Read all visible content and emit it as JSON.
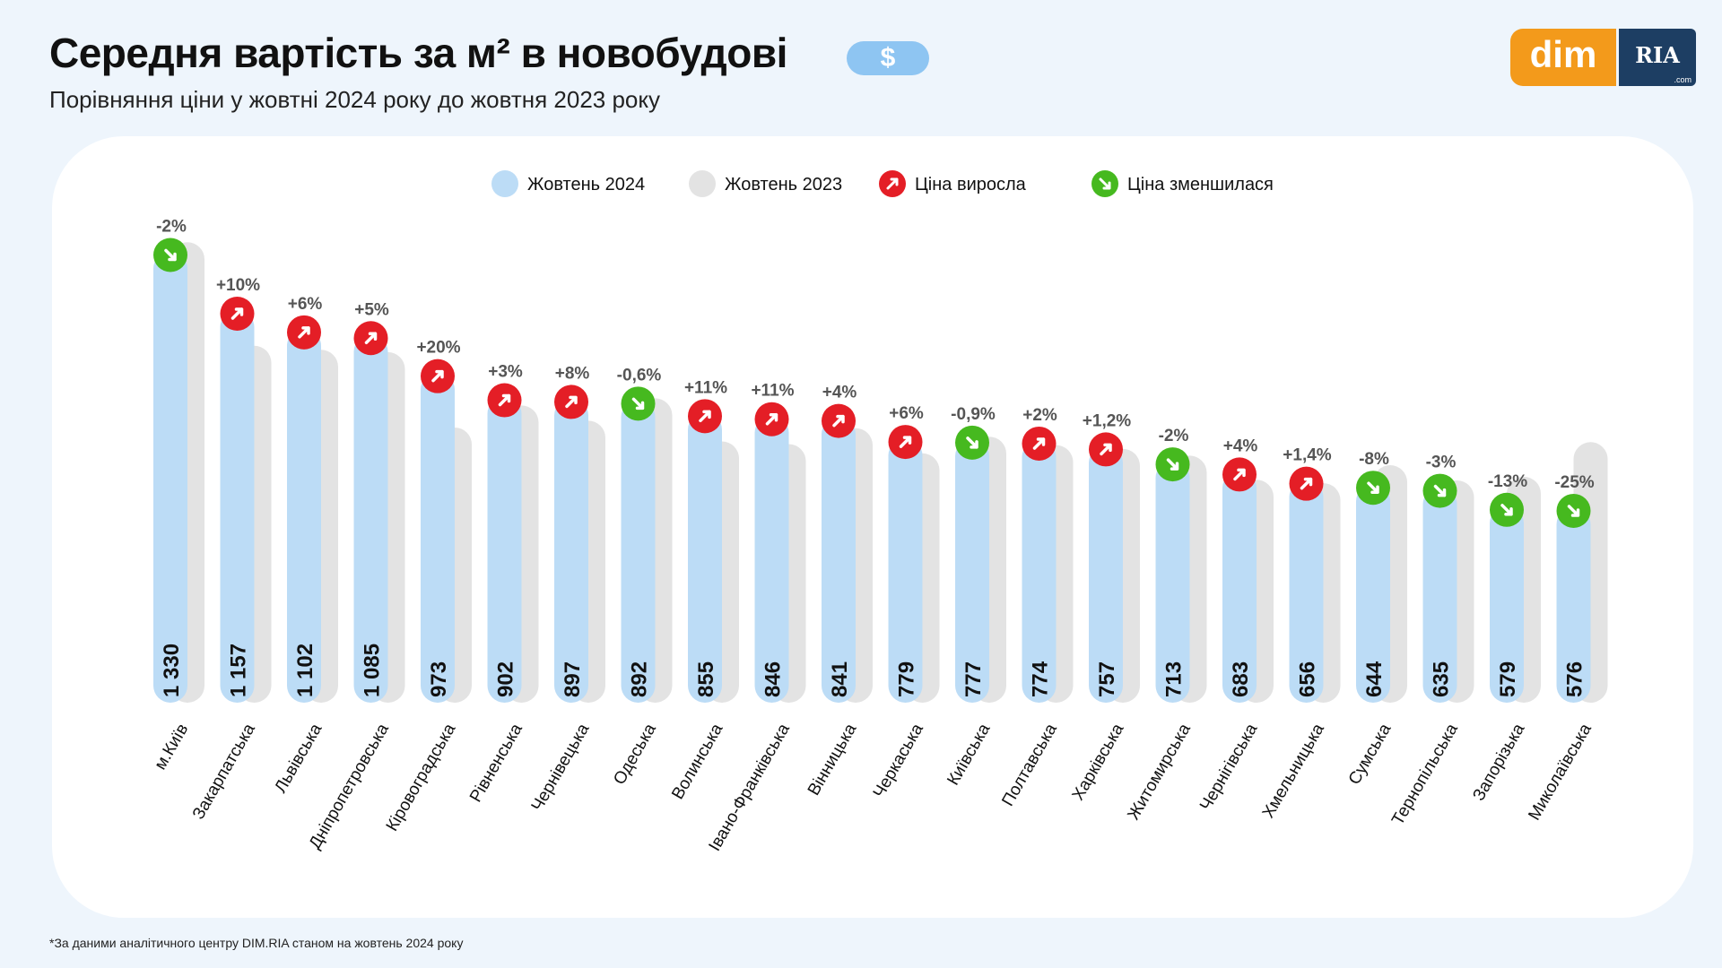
{
  "header": {
    "title": "Середня вартість за м² в новобудові",
    "currency_badge": "$",
    "subtitle": "Порівняння ціни у жовтні 2024 року до жовтня 2023 року",
    "logo_left": "dim",
    "logo_right": "RIA",
    "logo_suffix": ".com"
  },
  "footnote": "*За даними аналітичного центру DIM.RIA станом на жовтень 2024 року",
  "legend": [
    {
      "key": "oct2024",
      "label": "Жовтень 2024",
      "color": "#bcdcf6",
      "icon": "circle"
    },
    {
      "key": "oct2023",
      "label": "Жовтень 2023",
      "color": "#e3e3e3",
      "icon": "circle"
    },
    {
      "key": "up",
      "label": "Ціна виросла",
      "color": "#e41e26",
      "icon": "arrow-up-right-icon"
    },
    {
      "key": "down",
      "label": "Ціна зменшилася",
      "color": "#46b91f",
      "icon": "arrow-down-right-icon"
    }
  ],
  "colors": {
    "bar2024": "#bcdcf6",
    "bar2023": "#e3e3e3",
    "up": "#e41e26",
    "down": "#46b91f",
    "change_text": "#555555"
  },
  "chart_data": {
    "type": "bar",
    "categories": [
      "м.Київ",
      "Закарпатська",
      "Львівська",
      "Дніпропетровська",
      "Кіровоградська",
      "Рівненська",
      "Чернівецька",
      "Одеська",
      "Волинська",
      "Івано-Франківська",
      "Вінницька",
      "Черкаська",
      "Київська",
      "Полтавська",
      "Харківська",
      "Житомирська",
      "Чернігівська",
      "Хмельницька",
      "Сумська",
      "Тернопільська",
      "Запорізька",
      "Миколаївська"
    ],
    "series": [
      {
        "name": "Жовтень 2024",
        "values": [
          1330,
          1157,
          1102,
          1085,
          973,
          902,
          897,
          892,
          855,
          846,
          841,
          779,
          777,
          774,
          757,
          713,
          683,
          656,
          644,
          635,
          579,
          576
        ],
        "labels": [
          "1 330",
          "1 157",
          "1 102",
          "1 085",
          "973",
          "902",
          "897",
          "892",
          "855",
          "846",
          "841",
          "779",
          "777",
          "774",
          "757",
          "713",
          "683",
          "656",
          "644",
          "635",
          "579",
          "576"
        ]
      },
      {
        "name": "Жовтень 2023",
        "values": [
          1357,
          1052,
          1040,
          1033,
          811,
          876,
          831,
          897,
          770,
          762,
          809,
          735,
          784,
          759,
          748,
          728,
          657,
          647,
          700,
          655,
          666,
          768
        ]
      }
    ],
    "changes": [
      "-2%",
      "+10%",
      "+6%",
      "+5%",
      "+20%",
      "+3%",
      "+8%",
      "-0,6%",
      "+11%",
      "+11%",
      "+4%",
      "+6%",
      "-0,9%",
      "+2%",
      "+1,2%",
      "-2%",
      "+4%",
      "+1,4%",
      "-8%",
      "-3%",
      "-13%",
      "-25%"
    ],
    "directions": [
      "down",
      "up",
      "up",
      "up",
      "up",
      "up",
      "up",
      "down",
      "up",
      "up",
      "up",
      "up",
      "down",
      "up",
      "up",
      "down",
      "up",
      "up",
      "down",
      "down",
      "down",
      "down"
    ],
    "ylim": [
      0,
      1400
    ],
    "grid": false,
    "legend_position": "top-center"
  }
}
